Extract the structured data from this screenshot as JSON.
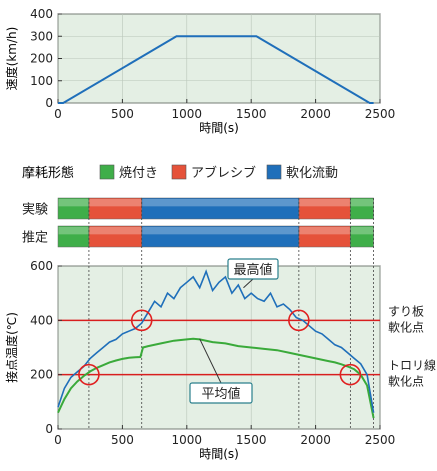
{
  "colors": {
    "plot_bg": "#e4efe4",
    "speed_line": "#1f6fba",
    "max_line": "#1f6fba",
    "avg_line": "#3aaa3a",
    "threshold_line": "#d81e1e",
    "marker_circle": "#e02020",
    "legend_green": "#3fae49",
    "legend_red": "#e5523a",
    "legend_blue": "#1f6fba",
    "callout_border": "#2a7f8c"
  },
  "legend": {
    "title": "摩耗形態",
    "items": [
      {
        "label": "焼付き",
        "color": "#3fae49"
      },
      {
        "label": "アブレシブ",
        "color": "#e5523a"
      },
      {
        "label": "軟化流動",
        "color": "#1f6fba"
      }
    ]
  },
  "wear_rows": [
    {
      "label": "実験",
      "segments": [
        {
          "from": 0,
          "to": 240,
          "type": "焼付き"
        },
        {
          "from": 240,
          "to": 650,
          "type": "アブレシブ"
        },
        {
          "from": 650,
          "to": 1870,
          "type": "軟化流動"
        },
        {
          "from": 1870,
          "to": 2270,
          "type": "アブレシブ"
        },
        {
          "from": 2270,
          "to": 2450,
          "type": "焼付き"
        }
      ]
    },
    {
      "label": "推定",
      "segments": [
        {
          "from": 0,
          "to": 240,
          "type": "焼付き"
        },
        {
          "from": 240,
          "to": 650,
          "type": "アブレシブ"
        },
        {
          "from": 650,
          "to": 1870,
          "type": "軟化流動"
        },
        {
          "from": 1870,
          "to": 2270,
          "type": "アブレシブ"
        },
        {
          "from": 2270,
          "to": 2450,
          "type": "焼付き"
        }
      ]
    }
  ],
  "chart_data": [
    {
      "type": "line",
      "xlabel": "時間(s)",
      "ylabel": "速度(km/h)",
      "xlim": [
        0,
        2500
      ],
      "ylim": [
        0,
        400
      ],
      "xticks": [
        "0",
        "500",
        "1000",
        "1500",
        "2000",
        "2500"
      ],
      "yticks": [
        "0",
        "100",
        "200",
        "300",
        "400"
      ],
      "series": [
        {
          "x": [
            0,
            40,
            920,
            1540,
            2420,
            2450
          ],
          "y": [
            0,
            0,
            300,
            300,
            0,
            0
          ]
        }
      ]
    },
    {
      "type": "line",
      "xlabel": "時間(s)",
      "ylabel": "接点温度(℃)",
      "xlim": [
        0,
        2500
      ],
      "ylim": [
        0,
        600
      ],
      "xticks": [
        "0",
        "500",
        "1000",
        "1500",
        "2000",
        "2500"
      ],
      "yticks": [
        "0",
        "200",
        "400",
        "600"
      ],
      "series": [
        {
          "name": "最高値",
          "x": [
            0,
            50,
            100,
            150,
            200,
            250,
            300,
            350,
            400,
            450,
            500,
            550,
            600,
            650,
            700,
            750,
            800,
            850,
            900,
            950,
            1000,
            1050,
            1100,
            1150,
            1200,
            1250,
            1300,
            1350,
            1400,
            1450,
            1500,
            1550,
            1600,
            1650,
            1700,
            1750,
            1800,
            1850,
            1900,
            1950,
            2000,
            2050,
            2100,
            2150,
            2200,
            2250,
            2300,
            2350,
            2400,
            2450
          ],
          "y": [
            80,
            150,
            190,
            210,
            230,
            260,
            280,
            300,
            320,
            330,
            350,
            360,
            370,
            390,
            430,
            470,
            450,
            500,
            480,
            520,
            540,
            560,
            520,
            580,
            510,
            540,
            560,
            500,
            530,
            480,
            500,
            480,
            470,
            500,
            450,
            460,
            440,
            410,
            400,
            380,
            360,
            350,
            330,
            310,
            300,
            280,
            260,
            240,
            200,
            60
          ]
        },
        {
          "name": "平均値",
          "x": [
            0,
            50,
            100,
            150,
            200,
            250,
            300,
            350,
            400,
            450,
            500,
            550,
            600,
            640,
            660,
            700,
            800,
            900,
            1000,
            1050,
            1100,
            1200,
            1300,
            1400,
            1500,
            1600,
            1700,
            1800,
            1900,
            2000,
            2100,
            2150,
            2200,
            2250,
            2300,
            2350,
            2400,
            2450
          ],
          "y": [
            60,
            110,
            150,
            175,
            195,
            212,
            225,
            235,
            245,
            252,
            258,
            262,
            264,
            265,
            300,
            305,
            315,
            325,
            330,
            332,
            330,
            320,
            315,
            305,
            300,
            295,
            290,
            280,
            270,
            260,
            250,
            245,
            238,
            230,
            220,
            200,
            160,
            40
          ]
        }
      ],
      "reference_lines": [
        {
          "y": 400,
          "label": "すり板\n軟化点"
        },
        {
          "y": 200,
          "label": "トロリ線\n軟化点"
        }
      ],
      "phase_boundaries": [
        240,
        650,
        1870,
        2270,
        2450
      ],
      "highlighted_crossings": [
        {
          "x": 240,
          "y": 200
        },
        {
          "x": 650,
          "y": 400
        },
        {
          "x": 1870,
          "y": 400
        },
        {
          "x": 2270,
          "y": 200
        }
      ],
      "callouts": [
        {
          "text": "最高値",
          "series": "最高値"
        },
        {
          "text": "平均値",
          "series": "平均値"
        }
      ]
    }
  ]
}
